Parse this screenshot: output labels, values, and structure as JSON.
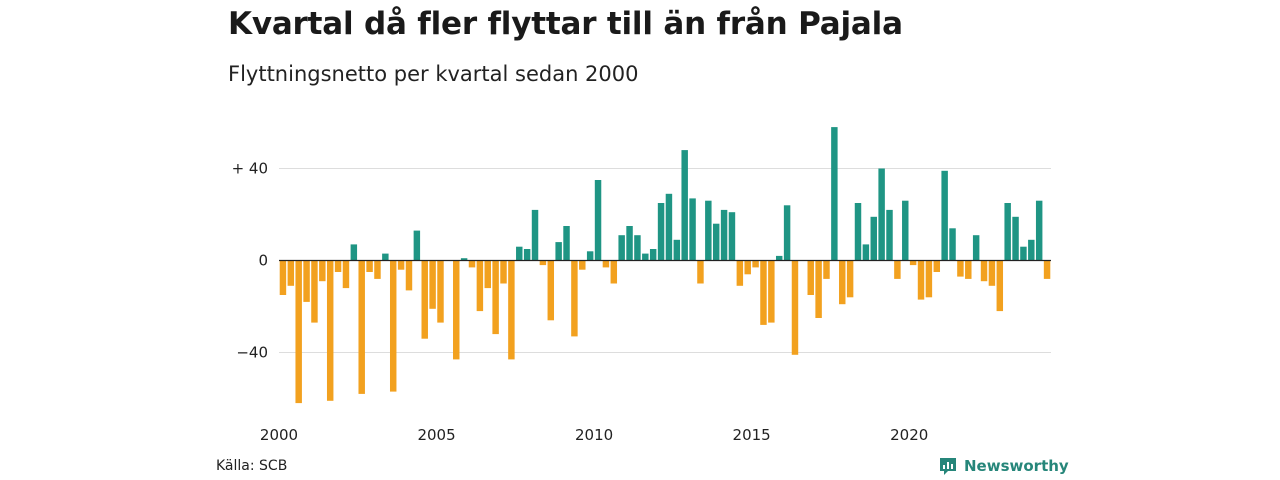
{
  "title": "Kvartal då fler flyttar till än från Pajala",
  "subtitle": "Flyttningsnetto per kvartal sedan 2000",
  "source": "Källa: SCB",
  "brand": {
    "name": "Newsworthy",
    "icon": "newsworthy-logo-icon"
  },
  "colors": {
    "positive": "#1f9584",
    "negative": "#f2a11f",
    "grid": "#dddddd",
    "axis": "#222222"
  },
  "chart_data": {
    "type": "bar",
    "title": "Kvartal då fler flyttar till än från Pajala",
    "subtitle": "Flyttningsnetto per kvartal sedan 2000",
    "xlabel": "",
    "ylabel": "",
    "x_start": 2000,
    "quarters_per_year": 4,
    "ylim": [
      -62,
      58
    ],
    "yticks": [
      {
        "value": 40,
        "label": "+ 40"
      },
      {
        "value": 0,
        "label": "0"
      },
      {
        "value": -40,
        "label": "−40"
      }
    ],
    "xticks": [
      {
        "value": 2000,
        "label": "2000"
      },
      {
        "value": 2005,
        "label": "2005"
      },
      {
        "value": 2010,
        "label": "2010"
      },
      {
        "value": 2015,
        "label": "2015"
      },
      {
        "value": 2020,
        "label": "2020"
      }
    ],
    "grid": true,
    "values": [
      -15,
      -11,
      -62,
      -18,
      -27,
      -9,
      -61,
      -5,
      -12,
      7,
      -58,
      -5,
      -8,
      3,
      -57,
      -4,
      -13,
      13,
      -34,
      -21,
      -27,
      0,
      -43,
      1,
      -3,
      -22,
      -12,
      -32,
      -10,
      -43,
      6,
      5,
      22,
      -2,
      -26,
      8,
      15,
      -33,
      -4,
      4,
      35,
      -3,
      -10,
      11,
      15,
      11,
      3,
      5,
      25,
      29,
      9,
      48,
      27,
      -10,
      26,
      16,
      22,
      21,
      -11,
      -6,
      -3,
      -28,
      -27,
      2,
      24,
      -41,
      0,
      -15,
      -25,
      -8,
      58,
      -19,
      -16,
      25,
      7,
      19,
      40,
      22,
      -8,
      26,
      -2,
      -17,
      -16,
      -5,
      39,
      14,
      -7,
      -8,
      11,
      -9,
      -11,
      -22,
      25,
      19,
      6,
      9,
      26,
      -8
    ]
  }
}
